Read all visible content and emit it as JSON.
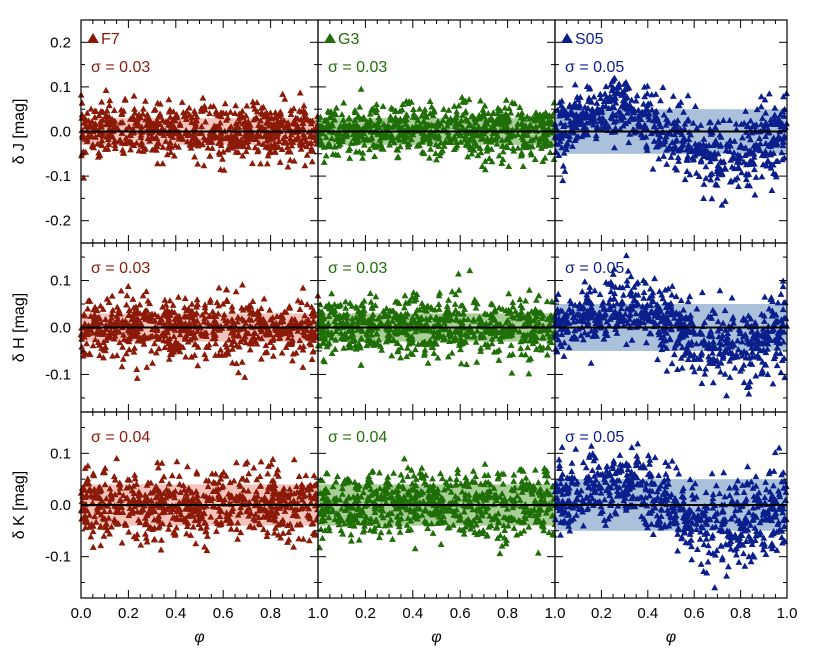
{
  "chart_data": {
    "type": "scatter",
    "title": "",
    "xlabel": "φ",
    "xlim": [
      0.0,
      1.0
    ],
    "xticks": [
      "0.0",
      "0.2",
      "0.4",
      "0.6",
      "0.8",
      "1.0"
    ],
    "series": [
      {
        "name": "F7",
        "color": "#8b1a08",
        "band_color": "#f4c4bc"
      },
      {
        "name": "G3",
        "color": "#1f6e08",
        "band_color": "#a7cf96"
      },
      {
        "name": "S05",
        "color": "#0b1f8c",
        "band_color": "#a9c1da"
      }
    ],
    "rows": [
      {
        "band": "J",
        "ylabel": "δ J [mag]",
        "ylim": [
          -0.25,
          0.25
        ],
        "yticks": [
          0.2,
          0.1,
          0.0,
          -0.1,
          -0.2
        ],
        "ytick_labels": [
          "0.2",
          "0.1",
          "0.0",
          "-0.1",
          "-0.2"
        ],
        "sigma_labels": [
          "σ = 0.03",
          "σ = 0.03",
          "σ = 0.05"
        ],
        "sigma": [
          0.03,
          0.03,
          0.05
        ]
      },
      {
        "band": "H",
        "ylabel": "δ H [mag]",
        "ylim": [
          -0.18,
          0.18
        ],
        "yticks": [
          0.1,
          0.0,
          -0.1
        ],
        "ytick_labels": [
          "0.1",
          "0.0",
          "-0.1"
        ],
        "sigma_labels": [
          "σ = 0.03",
          "σ = 0.03",
          "σ = 0.05"
        ],
        "sigma": [
          0.03,
          0.03,
          0.05
        ]
      },
      {
        "band": "K",
        "ylabel": "δ K [mag]",
        "ylim": [
          -0.18,
          0.18
        ],
        "yticks": [
          0.1,
          0.0,
          -0.1
        ],
        "ytick_labels": [
          "0.1",
          "0.0",
          "-0.1"
        ],
        "sigma_labels": [
          "σ = 0.04",
          "σ = 0.04",
          "σ = 0.05"
        ],
        "sigma": [
          0.04,
          0.04,
          0.05
        ]
      }
    ],
    "legend": [
      "F7",
      "G3",
      "S05"
    ],
    "points_per_panel": 700,
    "note": "Scatter points are residuals around zero; S05 shows a sinusoidal trend (peak near phase 0.3, dip near 0.85)."
  }
}
